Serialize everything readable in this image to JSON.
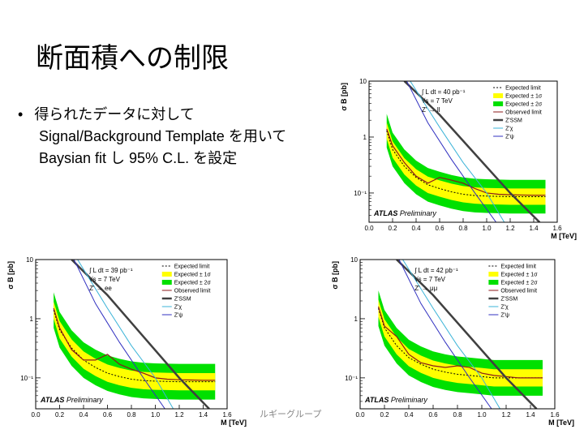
{
  "slide": {
    "title": "断面積への制限",
    "bullet_marker": "•",
    "bullet_line1": "得られたデータに対して",
    "bullet_line2": "Signal/Background Template を用いて",
    "bullet_line3": "Baysian fit し 95% C.L. を設定",
    "footer": "ルギーグループ"
  },
  "colors": {
    "expected": "#000000",
    "band1": "#ffff00",
    "band2": "#00e000",
    "observed": "#8b1a1a",
    "ssm": "#404040",
    "zchi": "#3cb4d8",
    "zpsi": "#3030c0"
  },
  "chart_data": [
    {
      "id": "ll",
      "type": "line",
      "yscale": "log",
      "xlim": [
        0,
        1.6
      ],
      "ylim": [
        0.03,
        10
      ],
      "xlabel": "M [TeV]",
      "ylabel": "σ B [pb]",
      "x_ticks": [
        "0.0",
        "0.2",
        "0.4",
        "0.6",
        "0.8",
        "1.0",
        "1.2",
        "1.4",
        "1.6"
      ],
      "y_ticks": [
        "10",
        "1",
        "10⁻¹"
      ],
      "lumi": "∫ L dt = 40 pb⁻¹",
      "energy": "√s = 7 TeV",
      "process": "Z' → ll",
      "atlas": "ATLAS",
      "preliminary": "Preliminary",
      "legend": [
        "Expected limit",
        "Expected ± 1σ",
        "Expected ± 2σ",
        "Observed limit",
        "Z'SSM",
        "Z'χ",
        "Z'ψ"
      ],
      "x": [
        0.15,
        0.2,
        0.3,
        0.4,
        0.5,
        0.6,
        0.7,
        0.8,
        0.9,
        1.0,
        1.1,
        1.2,
        1.3,
        1.4,
        1.5
      ],
      "expected": [
        1.3,
        0.6,
        0.3,
        0.19,
        0.14,
        0.12,
        0.105,
        0.095,
        0.09,
        0.088,
        0.087,
        0.086,
        0.086,
        0.086,
        0.086
      ],
      "observed": [
        1.4,
        0.7,
        0.35,
        0.2,
        0.15,
        0.19,
        0.17,
        0.15,
        0.12,
        0.1,
        0.095,
        0.093,
        0.092,
        0.091,
        0.091
      ],
      "band1_factor": 1.4,
      "band2_factor": 2.0,
      "theory": [
        {
          "key": "ssm",
          "x": [
            0.3,
            0.6,
            0.9,
            1.2,
            1.45
          ],
          "y": [
            10,
            2.5,
            0.5,
            0.1,
            0.03
          ],
          "width": 2.5
        },
        {
          "key": "zchi",
          "x": [
            0.35,
            0.6,
            0.8,
            1.0,
            1.15
          ],
          "y": [
            10,
            1.5,
            0.35,
            0.1,
            0.03
          ],
          "width": 1
        },
        {
          "key": "zpsi",
          "x": [
            0.32,
            0.5,
            0.7,
            0.9,
            1.08
          ],
          "y": [
            10,
            1.8,
            0.4,
            0.1,
            0.03
          ],
          "width": 1
        }
      ]
    },
    {
      "id": "ee",
      "type": "line",
      "yscale": "log",
      "xlim": [
        0,
        1.6
      ],
      "ylim": [
        0.03,
        10
      ],
      "xlabel": "M [TeV]",
      "ylabel": "σ B [pb]",
      "x_ticks": [
        "0.0",
        "0.2",
        "0.4",
        "0.6",
        "0.8",
        "1.0",
        "1.2",
        "1.4",
        "1.6"
      ],
      "y_ticks": [
        "10",
        "1",
        "10⁻¹"
      ],
      "lumi": "∫ L dt = 39 pb⁻¹",
      "energy": "√s = 7 TeV",
      "process": "Z' → ee",
      "atlas": "ATLAS",
      "preliminary": "Preliminary",
      "legend": [
        "Expected limit",
        "Expected ± 1σ",
        "Expected ± 2σ",
        "Observed limit",
        "Z'SSM",
        "Z'χ",
        "Z'ψ"
      ],
      "x": [
        0.15,
        0.2,
        0.3,
        0.4,
        0.5,
        0.6,
        0.7,
        0.8,
        0.9,
        1.0,
        1.1,
        1.2,
        1.3,
        1.4,
        1.5
      ],
      "expected": [
        1.4,
        0.65,
        0.32,
        0.2,
        0.15,
        0.12,
        0.105,
        0.095,
        0.09,
        0.088,
        0.087,
        0.086,
        0.086,
        0.086,
        0.086
      ],
      "observed": [
        1.5,
        0.7,
        0.3,
        0.2,
        0.2,
        0.25,
        0.17,
        0.14,
        0.12,
        0.1,
        0.095,
        0.093,
        0.092,
        0.091,
        0.091
      ],
      "band1_factor": 1.4,
      "band2_factor": 2.0,
      "theory": [
        {
          "key": "ssm",
          "x": [
            0.3,
            0.6,
            0.9,
            1.2,
            1.45
          ],
          "y": [
            10,
            2.5,
            0.5,
            0.1,
            0.03
          ],
          "width": 2.5
        },
        {
          "key": "zchi",
          "x": [
            0.35,
            0.6,
            0.8,
            1.0,
            1.15
          ],
          "y": [
            10,
            1.5,
            0.35,
            0.1,
            0.03
          ],
          "width": 1
        },
        {
          "key": "zpsi",
          "x": [
            0.32,
            0.5,
            0.7,
            0.9,
            1.08
          ],
          "y": [
            10,
            1.8,
            0.4,
            0.1,
            0.03
          ],
          "width": 1
        }
      ]
    },
    {
      "id": "mumu",
      "type": "line",
      "yscale": "log",
      "xlim": [
        0,
        1.6
      ],
      "ylim": [
        0.03,
        10
      ],
      "xlabel": "M [TeV]",
      "ylabel": "σ B [pb]",
      "x_ticks": [
        "0.0",
        "0.2",
        "0.4",
        "0.6",
        "0.8",
        "1.0",
        "1.2",
        "1.4",
        "1.6"
      ],
      "y_ticks": [
        "10",
        "1",
        "10⁻¹"
      ],
      "lumi": "∫ L dt = 42 pb⁻¹",
      "energy": "√s = 7 TeV",
      "process": "Z' → μμ",
      "atlas": "ATLAS",
      "preliminary": "Preliminary",
      "legend": [
        "Expected limit",
        "Expected ± 1σ",
        "Expected ± 2σ",
        "Observed limit",
        "Z'SSM",
        "Z'χ",
        "Z'ψ"
      ],
      "x": [
        0.15,
        0.2,
        0.3,
        0.4,
        0.5,
        0.6,
        0.7,
        0.8,
        0.9,
        1.0,
        1.1,
        1.2,
        1.3,
        1.4,
        1.5
      ],
      "expected": [
        1.5,
        0.7,
        0.35,
        0.22,
        0.17,
        0.14,
        0.125,
        0.115,
        0.11,
        0.105,
        0.1,
        0.1,
        0.1,
        0.1,
        0.1
      ],
      "observed": [
        1.6,
        0.75,
        0.5,
        0.25,
        0.18,
        0.16,
        0.15,
        0.16,
        0.15,
        0.12,
        0.11,
        0.105,
        0.1,
        0.1,
        0.1
      ],
      "band1_factor": 1.4,
      "band2_factor": 2.0,
      "theory": [
        {
          "key": "ssm",
          "x": [
            0.3,
            0.6,
            0.9,
            1.2,
            1.45
          ],
          "y": [
            10,
            2.5,
            0.5,
            0.1,
            0.03
          ],
          "width": 2.5
        },
        {
          "key": "zchi",
          "x": [
            0.35,
            0.6,
            0.8,
            1.0,
            1.15
          ],
          "y": [
            10,
            1.5,
            0.35,
            0.1,
            0.03
          ],
          "width": 1
        },
        {
          "key": "zpsi",
          "x": [
            0.32,
            0.5,
            0.7,
            0.9,
            1.08
          ],
          "y": [
            10,
            1.8,
            0.4,
            0.1,
            0.03
          ],
          "width": 1
        }
      ]
    }
  ]
}
